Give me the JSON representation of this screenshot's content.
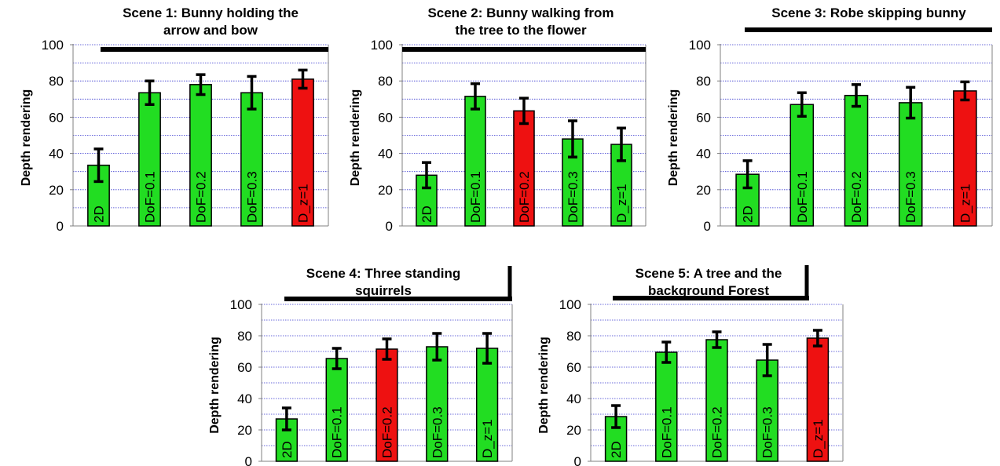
{
  "colors": {
    "green": "#22dd22",
    "red": "#ee1111",
    "grid": "#3a3ad0",
    "axis": "#000000"
  },
  "chart_data": [
    {
      "type": "bar",
      "title": "Scene 1: Bunny holding the arrow and bow",
      "title_lines": [
        "Scene 1: Bunny holding the",
        "arrow and bow"
      ],
      "ylabel": "Depth rendering",
      "ylim": [
        0,
        100
      ],
      "yticks": [
        "0",
        "20",
        "40",
        "60",
        "80",
        "100"
      ],
      "grid": true,
      "categories": [
        "2D",
        "DoF=0.1",
        "DoF=0.2",
        "DoF=0.3",
        "D_z=1"
      ],
      "values": [
        33.5,
        73.5,
        78,
        73.5,
        81
      ],
      "errors": [
        9,
        6.5,
        5.5,
        9,
        5
      ],
      "bar_colors": [
        "green",
        "green",
        "green",
        "green",
        "red"
      ]
    },
    {
      "type": "bar",
      "title": "Scene 2: Bunny walking from the tree to the flower",
      "title_lines": [
        "Scene 2: Bunny walking from",
        "the tree to the flower"
      ],
      "ylabel": "Depth rendering",
      "ylim": [
        0,
        100
      ],
      "yticks": [
        "0",
        "20",
        "40",
        "60",
        "80",
        "100"
      ],
      "grid": true,
      "categories": [
        "2D",
        "DoF=0.1",
        "DoF=0.2",
        "DoF=0.3",
        "D_z=1"
      ],
      "values": [
        28,
        71.5,
        63.5,
        48,
        45
      ],
      "errors": [
        7,
        7,
        7,
        10,
        9
      ],
      "bar_colors": [
        "green",
        "green",
        "red",
        "green",
        "green"
      ]
    },
    {
      "type": "bar",
      "title": "Scene 3: Robe skipping bunny",
      "title_lines": [
        "Scene 3: Robe skipping bunny"
      ],
      "ylabel": "Depth rendering",
      "ylim": [
        0,
        100
      ],
      "yticks": [
        "0",
        "20",
        "40",
        "60",
        "80",
        "100"
      ],
      "grid": true,
      "categories": [
        "2D",
        "DoF=0.1",
        "DoF=0.2",
        "DoF=0.3",
        "D_z=1"
      ],
      "values": [
        28.5,
        67,
        72,
        68,
        74.5
      ],
      "errors": [
        7.5,
        6.5,
        6,
        8.5,
        5
      ],
      "bar_colors": [
        "green",
        "green",
        "green",
        "green",
        "red"
      ]
    },
    {
      "type": "bar",
      "title": "Scene 4: Three standing squirrels",
      "title_lines": [
        "Scene 4: Three standing",
        "squirrels"
      ],
      "ylabel": "Depth rendering",
      "ylim": [
        0,
        100
      ],
      "yticks": [
        "0",
        "20",
        "40",
        "60",
        "80",
        "100"
      ],
      "grid": true,
      "categories": [
        "2D",
        "DoF=0.1",
        "DoF=0.2",
        "DoF=0.3",
        "D_z=1"
      ],
      "values": [
        27,
        65.5,
        71.5,
        73,
        72
      ],
      "errors": [
        7,
        6.5,
        6.5,
        8.5,
        9.5
      ],
      "bar_colors": [
        "green",
        "green",
        "red",
        "green",
        "green"
      ]
    },
    {
      "type": "bar",
      "title": "Scene 5: A tree and the background Forest",
      "title_lines": [
        "Scene 5: A tree and the",
        "background Forest"
      ],
      "ylabel": "Depth rendering",
      "ylim": [
        0,
        100
      ],
      "yticks": [
        "0",
        "20",
        "40",
        "60",
        "80",
        "100"
      ],
      "grid": true,
      "categories": [
        "2D",
        "DoF=0.1",
        "DoF=0.2",
        "DoF=0.3",
        "D_z=1"
      ],
      "values": [
        28.5,
        69.5,
        77.5,
        64.5,
        78.5
      ],
      "errors": [
        7,
        6.5,
        5,
        10,
        5
      ],
      "bar_colors": [
        "green",
        "green",
        "green",
        "green",
        "red"
      ]
    }
  ]
}
